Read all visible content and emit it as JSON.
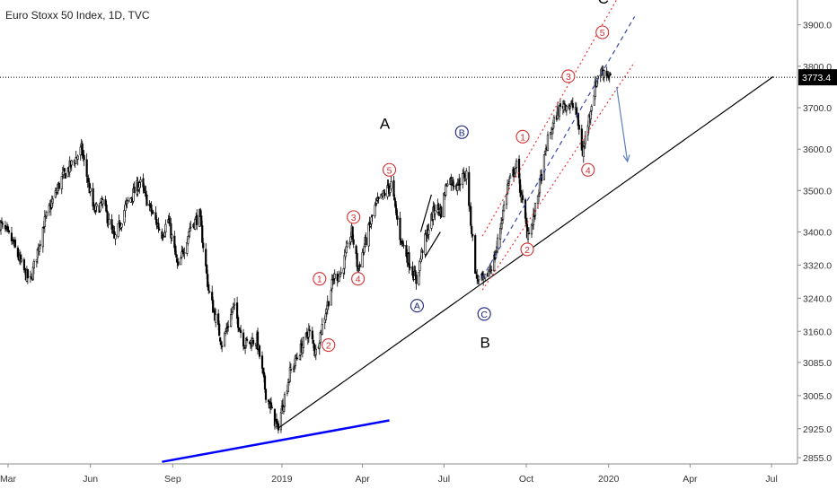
{
  "chart_data": {
    "type": "candlestick",
    "title": "Euro Stoxx 50 Index, 1D, TVC",
    "price_label": "3773.4",
    "current_price": 3773.4,
    "ylim": [
      2840,
      3960
    ],
    "y_ticks": [
      2855.0,
      2925.0,
      3005.0,
      3085.0,
      3160.0,
      3240.0,
      3320.0,
      3400.0,
      3500.0,
      3600.0,
      3700.0,
      3800.0,
      3900.0
    ],
    "y_tick_labels": [
      "2855.0",
      "2925.0",
      "3005.0",
      "3085.0",
      "3160.0",
      "3240.0",
      "3320.0",
      "3400.0",
      "3500.0",
      "3600.0",
      "3700.0",
      "3800.0",
      "3900.0"
    ],
    "x_tick_labels": [
      "Mar",
      "Jun",
      "Sep",
      "2019",
      "Apr",
      "Jul",
      "Oct",
      "2020",
      "Apr",
      "Jul"
    ],
    "x_tick_dates": [
      "2018-03-01",
      "2018-06-01",
      "2018-09-01",
      "2019-01-01",
      "2019-04-01",
      "2019-07-01",
      "2019-10-01",
      "2020-01-01",
      "2020-04-01",
      "2020-07-01"
    ],
    "x_range": [
      "2018-02-20",
      "2020-07-30"
    ],
    "price_path": [
      [
        "2018-02-20",
        3420
      ],
      [
        "2018-03-05",
        3380
      ],
      [
        "2018-03-20",
        3300
      ],
      [
        "2018-03-26",
        3280
      ],
      [
        "2018-04-10",
        3420
      ],
      [
        "2018-04-30",
        3530
      ],
      [
        "2018-05-15",
        3575
      ],
      [
        "2018-05-22",
        3600
      ],
      [
        "2018-06-05",
        3450
      ],
      [
        "2018-06-15",
        3470
      ],
      [
        "2018-06-28",
        3380
      ],
      [
        "2018-07-10",
        3460
      ],
      [
        "2018-07-26",
        3520
      ],
      [
        "2018-08-10",
        3440
      ],
      [
        "2018-08-20",
        3395
      ],
      [
        "2018-08-27",
        3430
      ],
      [
        "2018-09-07",
        3310
      ],
      [
        "2018-09-20",
        3410
      ],
      [
        "2018-10-01",
        3440
      ],
      [
        "2018-10-11",
        3260
      ],
      [
        "2018-10-26",
        3130
      ],
      [
        "2018-11-08",
        3220
      ],
      [
        "2018-11-20",
        3130
      ],
      [
        "2018-12-04",
        3140
      ],
      [
        "2018-12-14",
        3010
      ],
      [
        "2018-12-27",
        2925
      ],
      [
        "2019-01-10",
        3060
      ],
      [
        "2019-01-31",
        3160
      ],
      [
        "2019-02-08",
        3110
      ],
      [
        "2019-02-28",
        3290
      ],
      [
        "2019-03-08",
        3300
      ],
      [
        "2019-03-20",
        3400
      ],
      [
        "2019-03-27",
        3310
      ],
      [
        "2019-04-15",
        3460
      ],
      [
        "2019-05-03",
        3515
      ],
      [
        "2019-05-13",
        3390
      ],
      [
        "2019-05-31",
        3280
      ],
      [
        "2019-06-07",
        3360
      ],
      [
        "2019-06-21",
        3460
      ],
      [
        "2019-06-28",
        3450
      ],
      [
        "2019-07-05",
        3530
      ],
      [
        "2019-07-15",
        3515
      ],
      [
        "2019-07-26",
        3540
      ],
      [
        "2019-08-06",
        3290
      ],
      [
        "2019-08-15",
        3280
      ],
      [
        "2019-08-27",
        3340
      ],
      [
        "2019-09-10",
        3510
      ],
      [
        "2019-09-20",
        3560
      ],
      [
        "2019-10-02",
        3400
      ],
      [
        "2019-10-08",
        3420
      ],
      [
        "2019-10-25",
        3620
      ],
      [
        "2019-11-05",
        3690
      ],
      [
        "2019-11-12",
        3710
      ],
      [
        "2019-11-25",
        3700
      ],
      [
        "2019-12-03",
        3590
      ],
      [
        "2019-12-12",
        3700
      ],
      [
        "2019-12-20",
        3780
      ],
      [
        "2019-12-27",
        3790
      ],
      [
        "2020-01-03",
        3773
      ]
    ],
    "trendlines": [
      {
        "name": "support",
        "color": "#000000",
        "start": [
          "2018-12-27",
          2925
        ],
        "end": [
          "2020-07-03",
          3775
        ]
      },
      {
        "name": "blue-line",
        "color": "#0000ff",
        "start": [
          "2018-08-20",
          2845
        ],
        "end": [
          "2019-05-01",
          2945
        ]
      },
      {
        "name": "channel-upper",
        "color": "#e53935",
        "dash": true,
        "start": [
          "2019-08-13",
          3390
        ],
        "end": [
          "2020-01-15",
          3980
        ]
      },
      {
        "name": "channel-middle",
        "color": "#3949ab",
        "dash": true,
        "start": [
          "2019-08-13",
          3290
        ],
        "end": [
          "2020-01-30",
          3920
        ]
      },
      {
        "name": "channel-lower",
        "color": "#e53935",
        "dash": true,
        "start": [
          "2019-08-13",
          3260
        ],
        "end": [
          "2020-01-30",
          3810
        ]
      },
      {
        "name": "wedge-1",
        "color": "#000000",
        "start": [
          "2019-06-05",
          3400
        ],
        "end": [
          "2019-06-17",
          3490
        ]
      },
      {
        "name": "wedge-2",
        "color": "#000000",
        "start": [
          "2019-06-10",
          3340
        ],
        "end": [
          "2019-06-27",
          3400
        ]
      }
    ],
    "projection_arrow": {
      "color": "#5c7fb8",
      "start": [
        "2020-01-10",
        3750
      ],
      "end": [
        "2020-01-22",
        3570
      ]
    },
    "wave_labels": [
      {
        "text": "1",
        "style": "red",
        "date": "2019-02-12",
        "price": 3287
      },
      {
        "text": "2",
        "style": "red",
        "date": "2019-02-22",
        "price": 3127
      },
      {
        "text": "3",
        "style": "red",
        "date": "2019-03-22",
        "price": 3436
      },
      {
        "text": "4",
        "style": "red",
        "date": "2019-03-27",
        "price": 3287
      },
      {
        "text": "5",
        "style": "red",
        "date": "2019-05-01",
        "price": 3550
      },
      {
        "text": "A",
        "style": "blue",
        "date": "2019-06-01",
        "price": 3222
      },
      {
        "text": "B",
        "style": "blue",
        "date": "2019-07-21",
        "price": 3641
      },
      {
        "text": "C",
        "style": "blue",
        "date": "2019-08-15",
        "price": 3202
      },
      {
        "text": "1",
        "style": "red",
        "date": "2019-09-27",
        "price": 3630
      },
      {
        "text": "2",
        "style": "red",
        "date": "2019-10-02",
        "price": 3358
      },
      {
        "text": "3",
        "style": "red",
        "date": "2019-11-17",
        "price": 3776
      },
      {
        "text": "4",
        "style": "red",
        "date": "2019-12-09",
        "price": 3550
      },
      {
        "text": "5",
        "style": "red",
        "date": "2019-12-25",
        "price": 3882
      },
      {
        "text": "A",
        "style": "plain",
        "date": "2019-04-26",
        "price": 3662
      },
      {
        "text": "B",
        "style": "plain",
        "date": "2019-08-16",
        "price": 3134
      },
      {
        "text": "C",
        "style": "plain",
        "date": "2019-12-26",
        "price": 3964
      }
    ],
    "grid": false,
    "legend": "none"
  },
  "colors": {
    "candle": "#000000",
    "axis": "#8a8a8a",
    "price_label_bg": "#000000",
    "price_label_text": "#ffffff",
    "wave_red": "#d32f2f",
    "wave_blue": "#1a237e"
  }
}
